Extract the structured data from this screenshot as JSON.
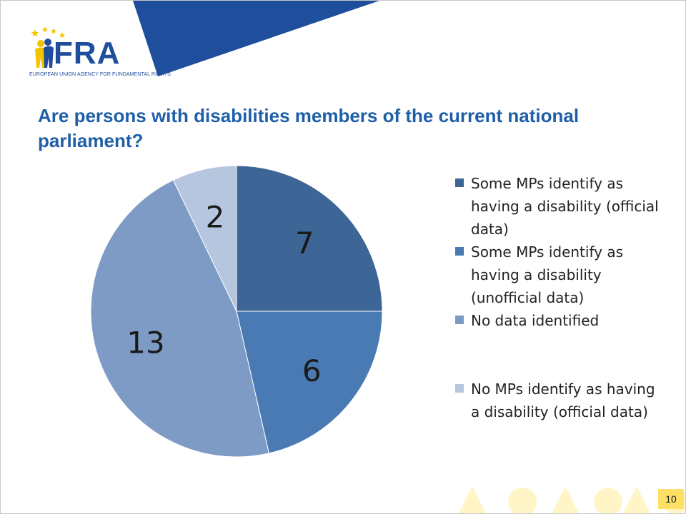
{
  "logo": {
    "text": "FRA",
    "subtitle": "EUROPEAN UNION AGENCY FOR FUNDAMENTAL RIGHTS"
  },
  "colors": {
    "banner": "#1f4e9c",
    "title": "#1f5fa8"
  },
  "slide": {
    "page_number": "10"
  },
  "chart_data": {
    "type": "pie",
    "title": "Are persons with disabilities members of the current national parliament?",
    "start_angle": "12 o'clock",
    "direction": "clockwise",
    "legend_position": "right",
    "series": [
      {
        "name": "Some MPs identify as having a disability (official data)",
        "value": 7,
        "label": "7",
        "color": "#3d6596"
      },
      {
        "name": "Some MPs identify as having a disability (unofficial data)",
        "value": 6,
        "label": "6",
        "color": "#4a7ab3"
      },
      {
        "name": "No data identified",
        "value": 13,
        "label": "13",
        "color": "#7e9bc6"
      },
      {
        "name": "No MPs identify as having a disability (official data)",
        "value": 2,
        "label": "2",
        "color": "#b7c6df"
      }
    ]
  }
}
